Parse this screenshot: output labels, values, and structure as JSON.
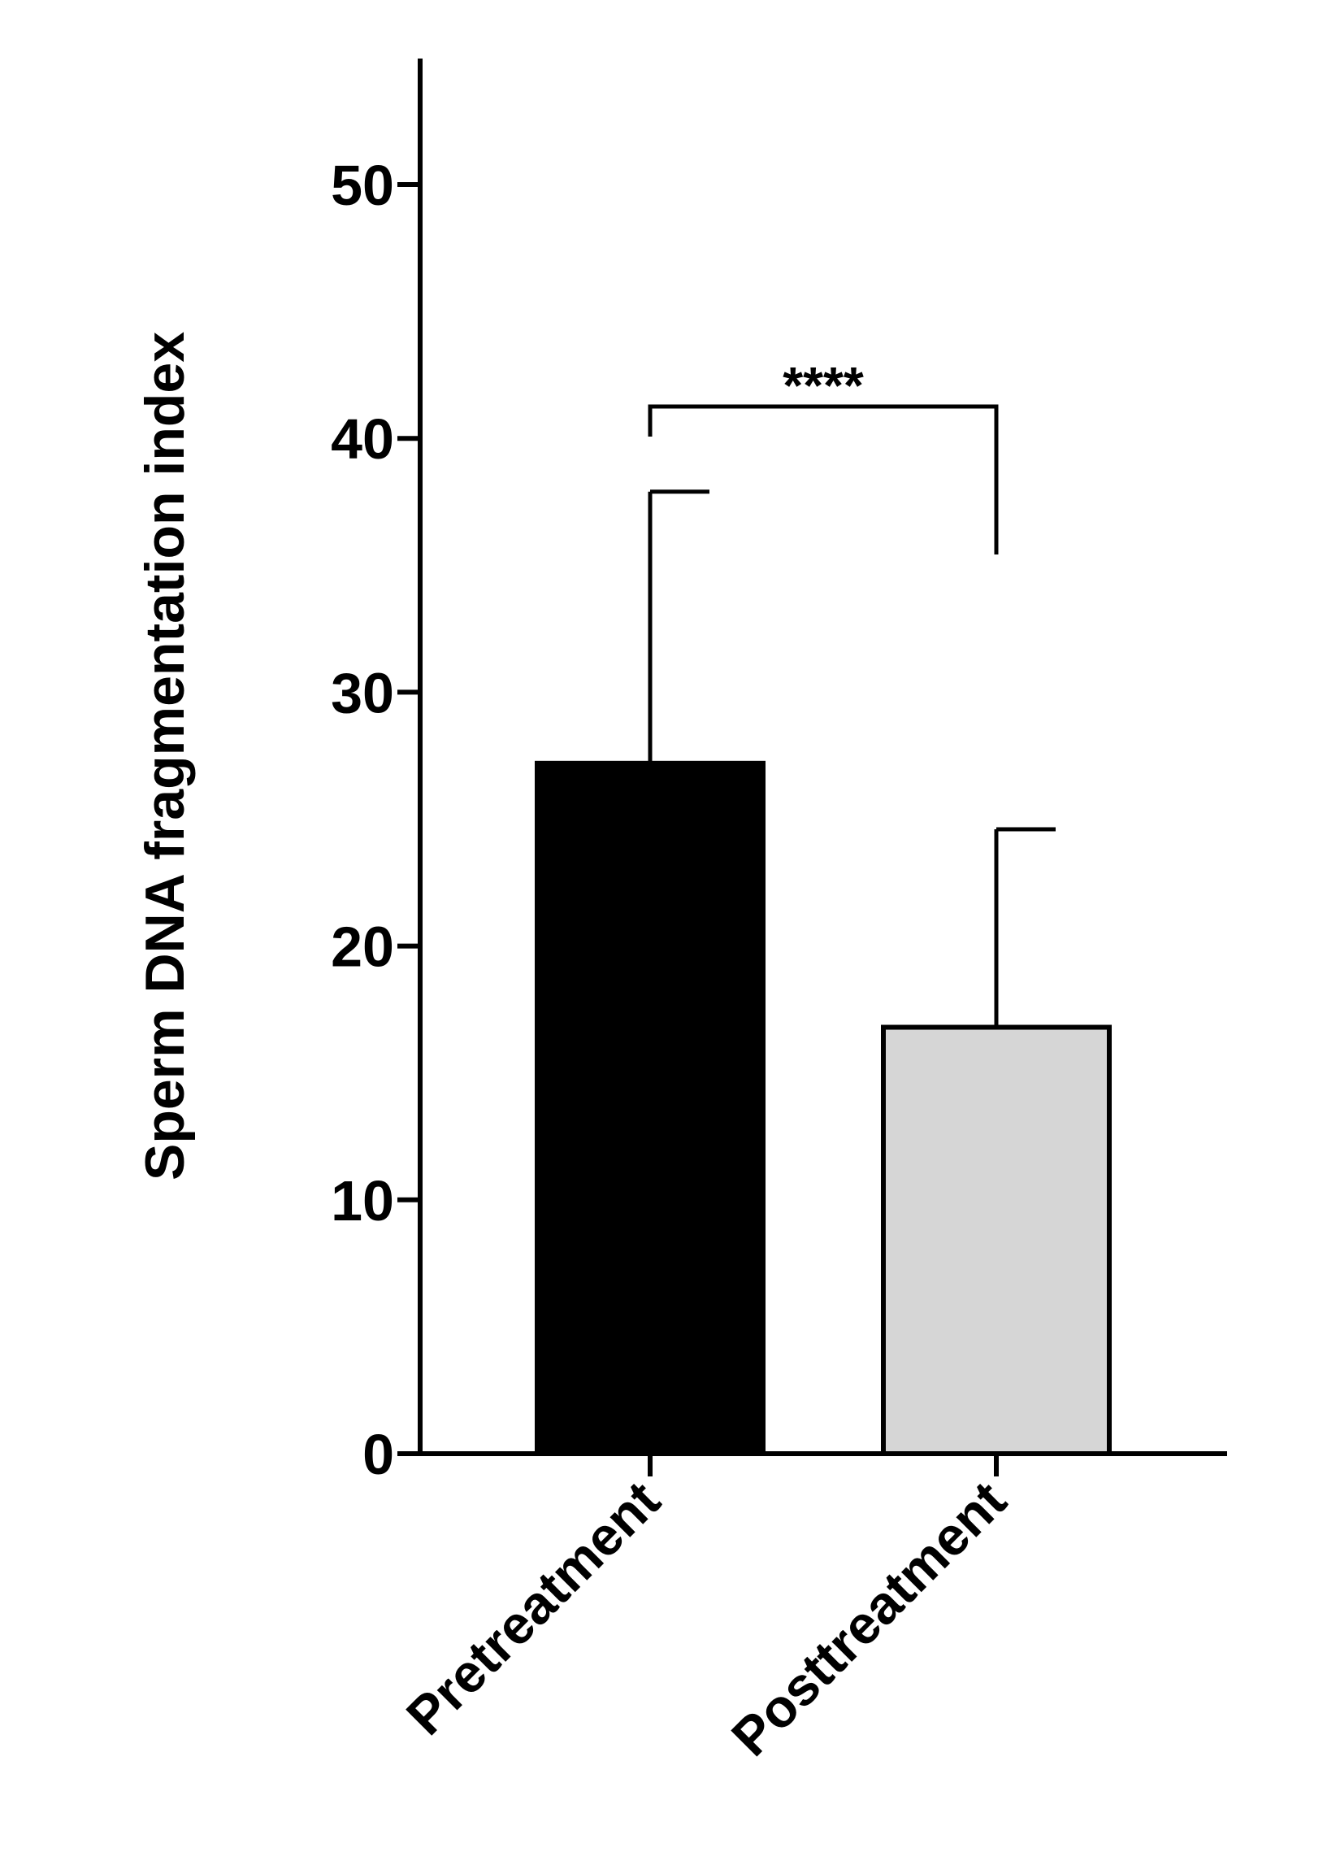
{
  "chart_data": {
    "type": "bar",
    "title": "",
    "xlabel": "",
    "ylabel": "Sperm DNA fragmentation index",
    "ylim": [
      0,
      55
    ],
    "yticks": [
      0,
      10,
      20,
      30,
      40,
      50
    ],
    "grid": false,
    "legend": "none",
    "categories": [
      "Pretreatment",
      "Posttreatment"
    ],
    "values": [
      27.2,
      16.8
    ],
    "error_upper": [
      37.9,
      24.6
    ],
    "bar_colors": [
      "#000000",
      "#d6d6d6"
    ],
    "edge_color": "#000000",
    "significance": {
      "label": "****",
      "between": [
        "Pretreatment",
        "Posttreatment"
      ]
    }
  }
}
